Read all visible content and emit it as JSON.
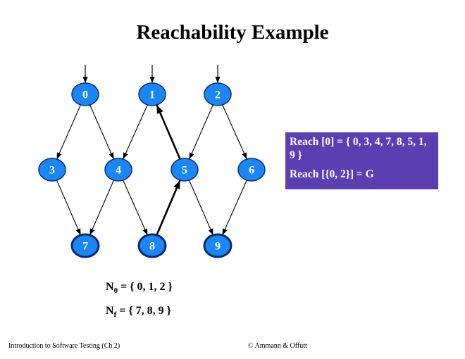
{
  "title": "Reachability Example",
  "nodes": [
    {
      "id": "0",
      "label": "0",
      "initial": true,
      "final": false
    },
    {
      "id": "1",
      "label": "1",
      "initial": true,
      "final": false
    },
    {
      "id": "2",
      "label": "2",
      "initial": true,
      "final": false
    },
    {
      "id": "3",
      "label": "3",
      "initial": false,
      "final": false
    },
    {
      "id": "4",
      "label": "4",
      "initial": false,
      "final": false
    },
    {
      "id": "5",
      "label": "5",
      "initial": false,
      "final": false
    },
    {
      "id": "6",
      "label": "6",
      "initial": false,
      "final": false
    },
    {
      "id": "7",
      "label": "7",
      "initial": false,
      "final": true
    },
    {
      "id": "8",
      "label": "8",
      "initial": false,
      "final": true
    },
    {
      "id": "9",
      "label": "9",
      "initial": false,
      "final": true
    }
  ],
  "edges": [
    {
      "from": "0",
      "to": "3",
      "bold": false
    },
    {
      "from": "0",
      "to": "4",
      "bold": false
    },
    {
      "from": "1",
      "to": "4",
      "bold": false
    },
    {
      "from": "2",
      "to": "5",
      "bold": false
    },
    {
      "from": "2",
      "to": "6",
      "bold": false
    },
    {
      "from": "3",
      "to": "7",
      "bold": false
    },
    {
      "from": "4",
      "to": "7",
      "bold": false
    },
    {
      "from": "4",
      "to": "8",
      "bold": false
    },
    {
      "from": "5",
      "to": "9",
      "bold": false
    },
    {
      "from": "6",
      "to": "9",
      "bold": false
    },
    {
      "from": "5",
      "to": "1",
      "bold": true
    },
    {
      "from": "8",
      "to": "5",
      "bold": true
    }
  ],
  "reach_box": {
    "line1": "Reach [0] = { 0, 3, 4, 7, 8, 5, 1, 9 }",
    "line2": "Reach [{0, 2}] = G"
  },
  "n0": {
    "symbol": "N",
    "sub": "0",
    "value": " = { 0, 1, 2 }"
  },
  "nf": {
    "symbol": "N",
    "sub": "f",
    "value": " = { 7, 8, 9 }"
  },
  "footer": {
    "left": "Introduction to Software Testing  (Ch 2)",
    "right": "© Ammann & Offutt"
  },
  "colors": {
    "node_fill": "#1a87f5",
    "node_stroke": "#0a2a70",
    "reach_box_bg": "#5b3fb0"
  }
}
